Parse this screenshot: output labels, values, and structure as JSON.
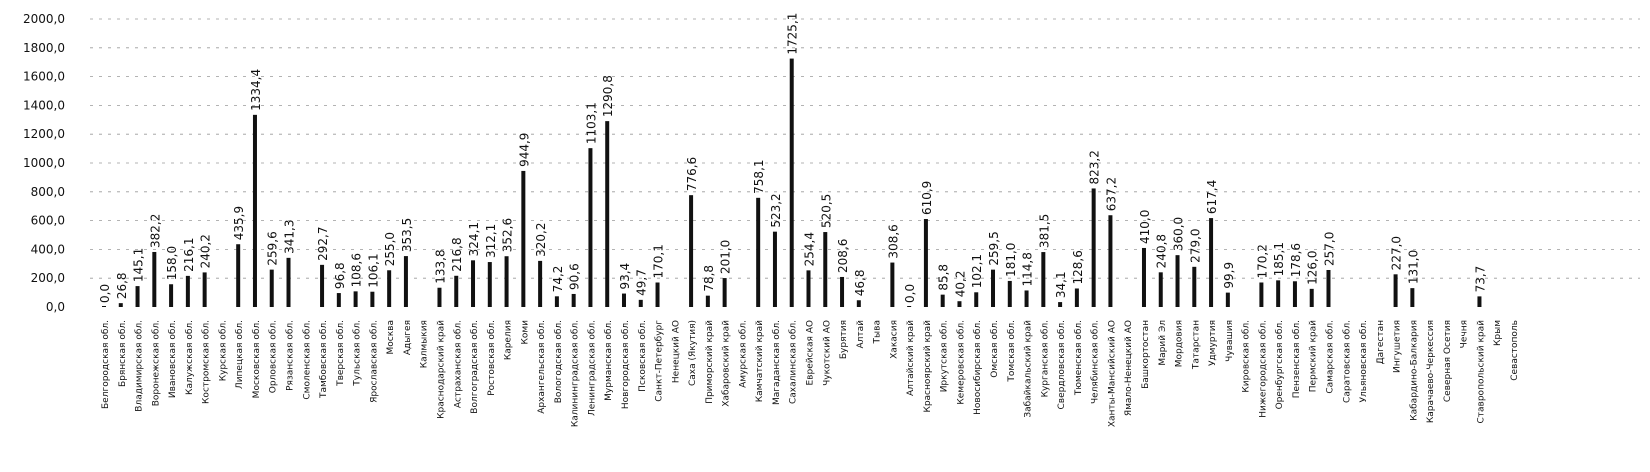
{
  "chart_data": {
    "type": "bar",
    "title": "",
    "xlabel": "",
    "ylabel": "",
    "ylim": [
      0,
      2000
    ],
    "yticks": [
      "0,0",
      "200,0",
      "400,0",
      "600,0",
      "800,0",
      "1000,0",
      "1200,0",
      "1400,0",
      "1600,0",
      "1800,0",
      "2000,0"
    ],
    "grid": "horizontal-dashed",
    "legend": "none",
    "bar_color": "#111111",
    "categories": [
      "Белгородская обл.",
      "Брянская обл.",
      "Владимирская обл.",
      "Воронежская обл.",
      "Ивановская обл.",
      "Калужская обл.",
      "Костромская обл.",
      "Курская обл.",
      "Липецкая обл.",
      "Московская обл.",
      "Орловская обл.",
      "Рязанская обл.",
      "Смоленская обл.",
      "Тамбовская обл.",
      "Тверская обл.",
      "Тульская обл.",
      "Ярославская обл.",
      "Москва",
      "Адыгея",
      "Калмыкия",
      "Краснодарский край",
      "Астраханская обл.",
      "Волгоградская обл.",
      "Ростовская обл.",
      "Карелия",
      "Коми",
      "Архангельская обл.",
      "Вологодская обл.",
      "Калининградская обл.",
      "Ленинградская обл.",
      "Мурманская обл.",
      "Новгородская обл.",
      "Псковская обл.",
      "Санкт-Петербург",
      "Ненецкий АО",
      "Саха (Якутия)",
      "Приморский край",
      "Хабаровский край",
      "Амурская обл.",
      "Камчатский край",
      "Магаданская обл.",
      "Сахалинская обл.",
      "Еврейская АО",
      "Чукотский АО",
      "Бурятия",
      "Алтай",
      "Тыва",
      "Хакасия",
      "Алтайский край",
      "Красноярский край",
      "Иркутская обл.",
      "Кемеровская обл.",
      "Новосибирская обл.",
      "Омская обл.",
      "Томская обл.",
      "Забайкальский край",
      "Курганская обл.",
      "Свердловская обл.",
      "Тюменская обл.",
      "Челябинская обл.",
      "Ханты-Мансийский АО",
      "Ямало-Ненецкий АО",
      "Башкортостан",
      "Марий Эл",
      "Мордовия",
      "Татарстан",
      "Удмуртия",
      "Чувашия",
      "Кировская обл.",
      "Нижегородская обл.",
      "Оренбургская обл.",
      "Пензенская обл.",
      "Пермский край",
      "Самарская обл.",
      "Саратовская обл.",
      "Ульяновская обл.",
      "Дагестан",
      "Ингушетия",
      "Кабардино-Балкария",
      "Карачаево-Черкессия",
      "Северная Осетия",
      "Чечня",
      "Ставропольский край",
      "Крым",
      "Севастополь"
    ],
    "labels": [
      "0,0",
      "26,8",
      "145,1",
      "382,2",
      "158,0",
      "216,1",
      "240,2",
      "",
      "435,9",
      "1334,4",
      "259,6",
      "341,3",
      "",
      "292,7",
      "96,8",
      "108,6",
      "106,1",
      "255,0",
      "353,5",
      "",
      "133,8",
      "216,8",
      "324,1",
      "312,1",
      "352,6",
      "944,9",
      "320,2",
      "74,2",
      "90,6",
      "1103,1",
      "1290,8",
      "93,4",
      "49,7",
      "170,1",
      "",
      "776,6",
      "78,8",
      "201,0",
      "",
      "758,1",
      "523,2",
      "1725,1",
      "254,4",
      "520,5",
      "208,6",
      "46,8",
      "",
      "308,6",
      "0,0",
      "610,9",
      "85,8",
      "40,2",
      "102,1",
      "259,5",
      "181,0",
      "114,8",
      "381,5",
      "34,1",
      "128,6",
      "823,2",
      "637,2",
      "",
      "410,0",
      "240,8",
      "360,0",
      "279,0",
      "617,4",
      "99,9",
      "",
      "170,2",
      "185,1",
      "178,6",
      "126,0",
      "257,0",
      "",
      "",
      "",
      "227,0",
      "131,0",
      "",
      "",
      "",
      "73,7",
      "",
      ""
    ],
    "values": [
      0,
      26.8,
      145.1,
      382.2,
      158.0,
      216.1,
      240.2,
      null,
      435.9,
      1334.4,
      259.6,
      341.3,
      null,
      292.7,
      96.8,
      108.6,
      106.1,
      255.0,
      353.5,
      null,
      133.8,
      216.8,
      324.1,
      312.1,
      352.6,
      944.9,
      320.2,
      74.2,
      90.6,
      1103.1,
      1290.8,
      93.4,
      49.7,
      170.1,
      null,
      776.6,
      78.8,
      201.0,
      null,
      758.1,
      523.2,
      1725.1,
      254.4,
      520.5,
      208.6,
      46.8,
      null,
      308.6,
      0,
      610.9,
      85.8,
      40.2,
      102.1,
      259.5,
      181.0,
      114.8,
      381.5,
      34.1,
      128.6,
      823.2,
      637.2,
      null,
      410.0,
      240.8,
      360.0,
      279.0,
      617.4,
      99.9,
      null,
      170.2,
      185.1,
      178.6,
      126.0,
      257.0,
      null,
      null,
      null,
      227.0,
      131.0,
      null,
      null,
      null,
      73.7,
      null,
      null
    ]
  }
}
